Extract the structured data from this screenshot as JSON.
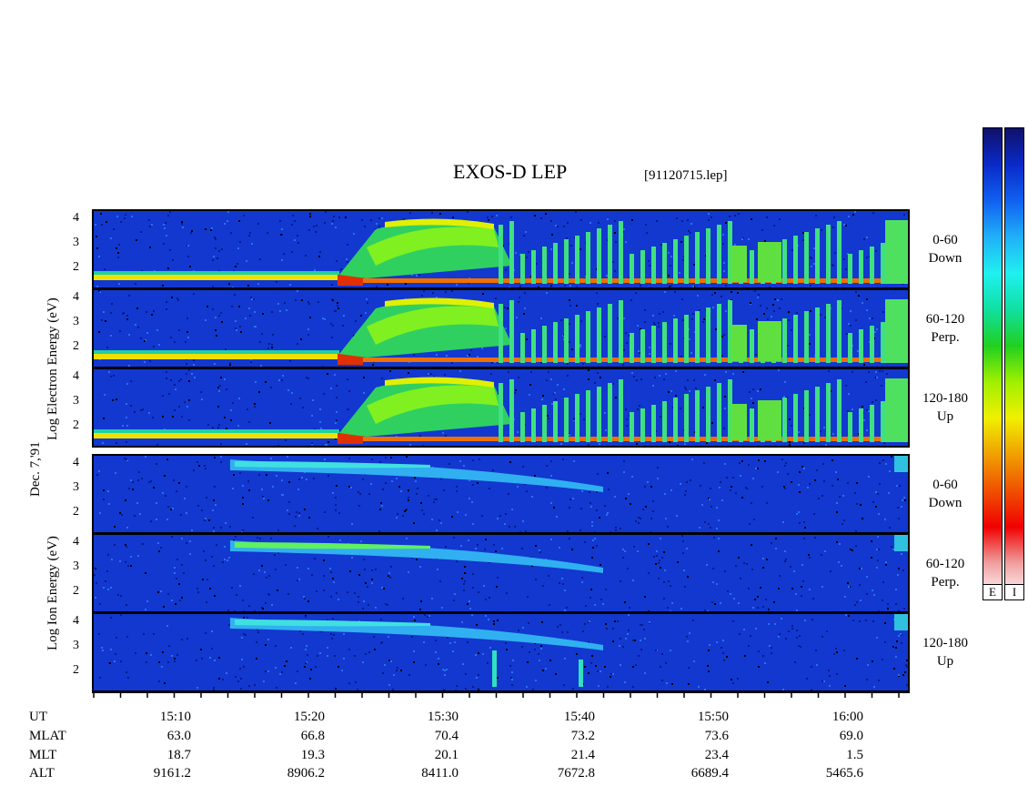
{
  "title": "EXOS-D LEP",
  "file": "[91120715.lep]",
  "ylabels": {
    "electron": "Log   Electron   Energy (eV)",
    "ion": "Log   Ion   Energy (eV)",
    "date": "Dec. 7,'91"
  },
  "yticks": [
    "4",
    "3",
    "2"
  ],
  "panels": [
    {
      "group": "electron",
      "pitch": "0-60",
      "dir": "Down"
    },
    {
      "group": "electron",
      "pitch": "60-120",
      "dir": "Perp."
    },
    {
      "group": "electron",
      "pitch": "120-180",
      "dir": "Up"
    },
    {
      "group": "ion",
      "pitch": "0-60",
      "dir": "Down"
    },
    {
      "group": "ion",
      "pitch": "60-120",
      "dir": "Perp."
    },
    {
      "group": "ion",
      "pitch": "120-180",
      "dir": "Up"
    }
  ],
  "bottom": {
    "labels": [
      "UT",
      "MLAT",
      "MLT",
      "ALT"
    ],
    "ut": [
      "15:10",
      "15:20",
      "15:30",
      "15:40",
      "15:50",
      "16:00"
    ],
    "mlat": [
      "63.0",
      "66.8",
      "70.4",
      "73.2",
      "73.6",
      "69.0"
    ],
    "mlt": [
      "18.7",
      "19.3",
      "20.1",
      "21.4",
      "23.4",
      "1.5"
    ],
    "alt": [
      "9161.2",
      "8906.2",
      "8411.0",
      "7672.8",
      "6689.4",
      "5465.6"
    ]
  },
  "colorbar": {
    "labels": [
      "E",
      "I"
    ],
    "colors": [
      "#10106a",
      "#0a2ac8",
      "#1060f0",
      "#20b0f8",
      "#20f0f0",
      "#10e0a0",
      "#20d020",
      "#a0f000",
      "#f0f000",
      "#f0a000",
      "#f05000",
      "#f00000",
      "#f0a0a0",
      "#ffffff"
    ]
  },
  "chart_data": {
    "type": "heatmap",
    "title": "EXOS-D LEP",
    "xlabel": "UT",
    "ylabel": "Log Energy (eV)",
    "x": [
      "15:10",
      "15:20",
      "15:30",
      "15:40",
      "15:50",
      "16:00"
    ],
    "ylim": [
      1,
      4.2
    ],
    "series": [
      {
        "name": "Electron 0-60 Down"
      },
      {
        "name": "Electron 60-120 Perp."
      },
      {
        "name": "Electron 120-180 Up"
      },
      {
        "name": "Ion 0-60 Down"
      },
      {
        "name": "Ion 60-120 Perp."
      },
      {
        "name": "Ion 120-180 Up"
      }
    ]
  }
}
